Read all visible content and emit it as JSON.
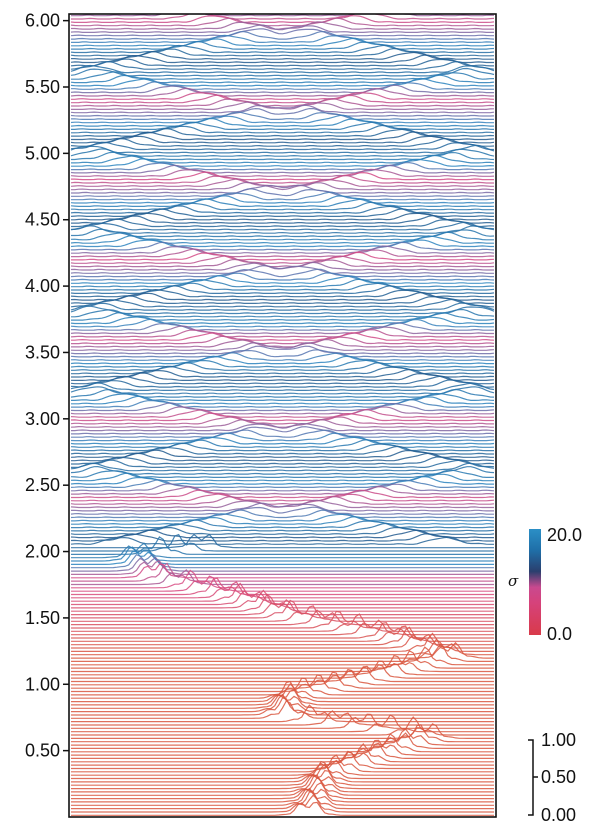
{
  "chart_data": {
    "type": "line",
    "title": "",
    "xlabel": "",
    "ylabel": "",
    "ylim": [
      0.0,
      6.05
    ],
    "yticks": [
      0.5,
      1.0,
      1.5,
      2.0,
      2.5,
      3.0,
      3.5,
      4.0,
      4.5,
      5.0,
      5.5,
      6.0
    ],
    "ytick_labels": [
      "0.50",
      "1.00",
      "1.50",
      "2.00",
      "2.50",
      "3.00",
      "3.50",
      "4.00",
      "4.50",
      "5.00",
      "5.50",
      "6.00"
    ],
    "grid": false,
    "trace_count": 240,
    "ridge_path": {
      "description_values_y": [
        0.0,
        0.3,
        0.45,
        0.6,
        0.75,
        0.9,
        1.05,
        1.2,
        1.35,
        1.5,
        1.65,
        1.8,
        1.95,
        2.05
      ],
      "x_fraction": [
        0.56,
        0.6,
        0.72,
        0.85,
        0.5,
        0.52,
        0.72,
        0.9,
        0.75,
        0.52,
        0.38,
        0.2,
        0.15,
        0.35
      ]
    },
    "colorbar": {
      "label": "σ",
      "min_label": "0.0",
      "max_label": "20.0",
      "colors": [
        "#d83a4a",
        "#d6427a",
        "#c9498f",
        "#2a3f6e",
        "#1f6fa8",
        "#2b8fc6"
      ]
    },
    "amplitude_scale": {
      "tick_labels": [
        "1.00",
        "0.50",
        "0.00"
      ]
    },
    "trace_colors": {
      "low": "#d9573f",
      "pink": "#d84a86",
      "blue": "#2c86c0",
      "dark": "#1d3c6a"
    }
  }
}
